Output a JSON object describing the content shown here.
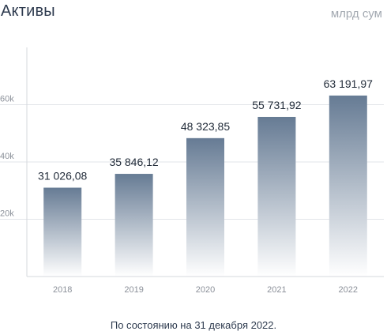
{
  "header": {
    "title": "Активы",
    "unit": "млрд сум"
  },
  "footnote": "По состоянию на 31 декабря 2022.",
  "colors": {
    "bar_top": "#667b94",
    "bar_bottom": "#ffffff",
    "grid": "#e2e5e9",
    "axis": "#d5d8dd"
  },
  "chart_data": {
    "type": "bar",
    "categories": [
      "2018",
      "2019",
      "2020",
      "2021",
      "2022"
    ],
    "values": [
      31026.08,
      35846.12,
      48323.85,
      55731.92,
      63191.97
    ],
    "data_labels": [
      "31 026,08",
      "35 846,12",
      "48 323,85",
      "55 731,92",
      "63 191,97"
    ],
    "yticks": [
      20000,
      40000,
      60000
    ],
    "ytick_labels": [
      "20k",
      "40k",
      "60k"
    ],
    "ylim": [
      0,
      80000
    ],
    "grid": true,
    "legend": "none"
  }
}
